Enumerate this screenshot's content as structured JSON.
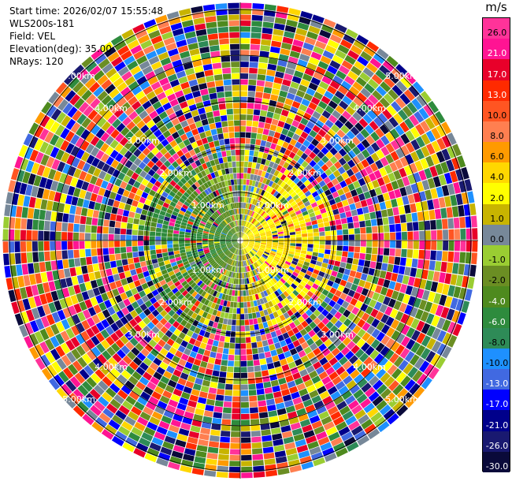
{
  "header": {
    "start_time": "Start time: 2026/02/07 15:55:48",
    "instrument": "WLS200s-181",
    "field": "Field: VEL",
    "elevation": "Elevation(deg): 35.00",
    "nrays": "NRays: 120"
  },
  "chart_data": {
    "type": "heatmap",
    "projection": "polar-ppi",
    "range_km_max": 5.0,
    "range_rings_km": [
      1,
      2,
      3,
      4,
      5
    ],
    "ring_labels": [
      "1.00km",
      "2.00km",
      "3.00km",
      "4.00km",
      "5.00km"
    ],
    "nrays": 120,
    "gate_count": 40,
    "colorbar": {
      "title": "m/s",
      "levels": [
        "26.0",
        "21.0",
        "17.0",
        "13.0",
        "10.0",
        "8.0",
        "6.0",
        "4.0",
        "2.0",
        "1.0",
        "0.0",
        "-1.0",
        "-2.0",
        "-4.0",
        "-6.0",
        "-8.0",
        "-10.0",
        "-13.0",
        "-17.0",
        "-21.0",
        "-26.0",
        "-30.0"
      ],
      "colors": [
        "#ff3399",
        "#ff1493",
        "#e8002a",
        "#ff2a00",
        "#ff5522",
        "#ff7f50",
        "#ff9a00",
        "#ffd700",
        "#ffff00",
        "#c8b400",
        "#778899",
        "#9acd32",
        "#6b8e23",
        "#4e8a1e",
        "#2e8b3d",
        "#2e8b57",
        "#1e90ff",
        "#4169e1",
        "#0000ff",
        "#00008b",
        "#191970",
        "#0a0a3a"
      ]
    }
  }
}
